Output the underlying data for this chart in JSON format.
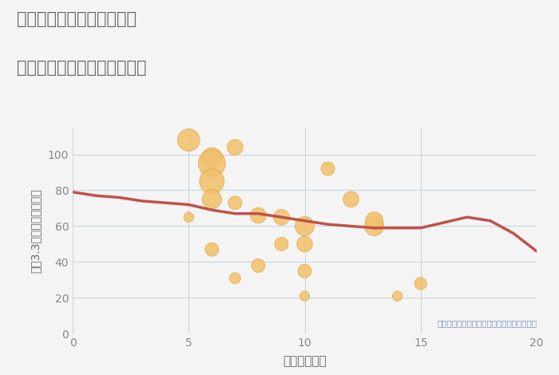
{
  "title_line1": "三重県四日市市垂坂新町の",
  "title_line2": "駅距離別中古マンション価格",
  "xlabel": "駅距離（分）",
  "ylabel": "坪（3.3㎡）単価（万円）",
  "background_color": "#f4f4f4",
  "scatter": {
    "x": [
      5,
      6,
      6,
      6,
      6,
      6,
      7,
      7,
      7,
      8,
      8,
      9,
      9,
      10,
      10,
      10,
      10,
      11,
      12,
      13,
      13,
      14,
      15,
      5
    ],
    "y": [
      108,
      98,
      95,
      85,
      75,
      47,
      104,
      73,
      31,
      66,
      38,
      65,
      50,
      60,
      50,
      35,
      21,
      92,
      75,
      60,
      63,
      21,
      28,
      65
    ],
    "size": [
      400,
      350,
      600,
      500,
      300,
      150,
      200,
      150,
      100,
      200,
      150,
      200,
      150,
      300,
      200,
      150,
      80,
      150,
      200,
      300,
      250,
      80,
      120,
      80
    ]
  },
  "trend": {
    "x": [
      0,
      1,
      2,
      3,
      4,
      5,
      6,
      7,
      8,
      9,
      10,
      11,
      12,
      13,
      14,
      15,
      16,
      17,
      18,
      19,
      20
    ],
    "y": [
      79,
      77,
      76,
      74,
      73,
      72,
      69,
      67,
      67,
      65,
      63,
      61,
      60,
      59,
      59,
      59,
      62,
      65,
      63,
      56,
      46
    ]
  },
  "scatter_color": "#f2c06a",
  "scatter_edge_color": "#e0a030",
  "trend_color": "#c0524a",
  "trend_linewidth": 2.5,
  "xlim": [
    0,
    20
  ],
  "ylim": [
    0,
    115
  ],
  "xticks": [
    0,
    5,
    10,
    15,
    20
  ],
  "yticks": [
    0,
    20,
    40,
    60,
    80,
    100
  ],
  "grid_color": "#c8d4e0",
  "annotation": "円の大きさは、取引のあった物件面積を示す",
  "annotation_color": "#7a8fbf"
}
